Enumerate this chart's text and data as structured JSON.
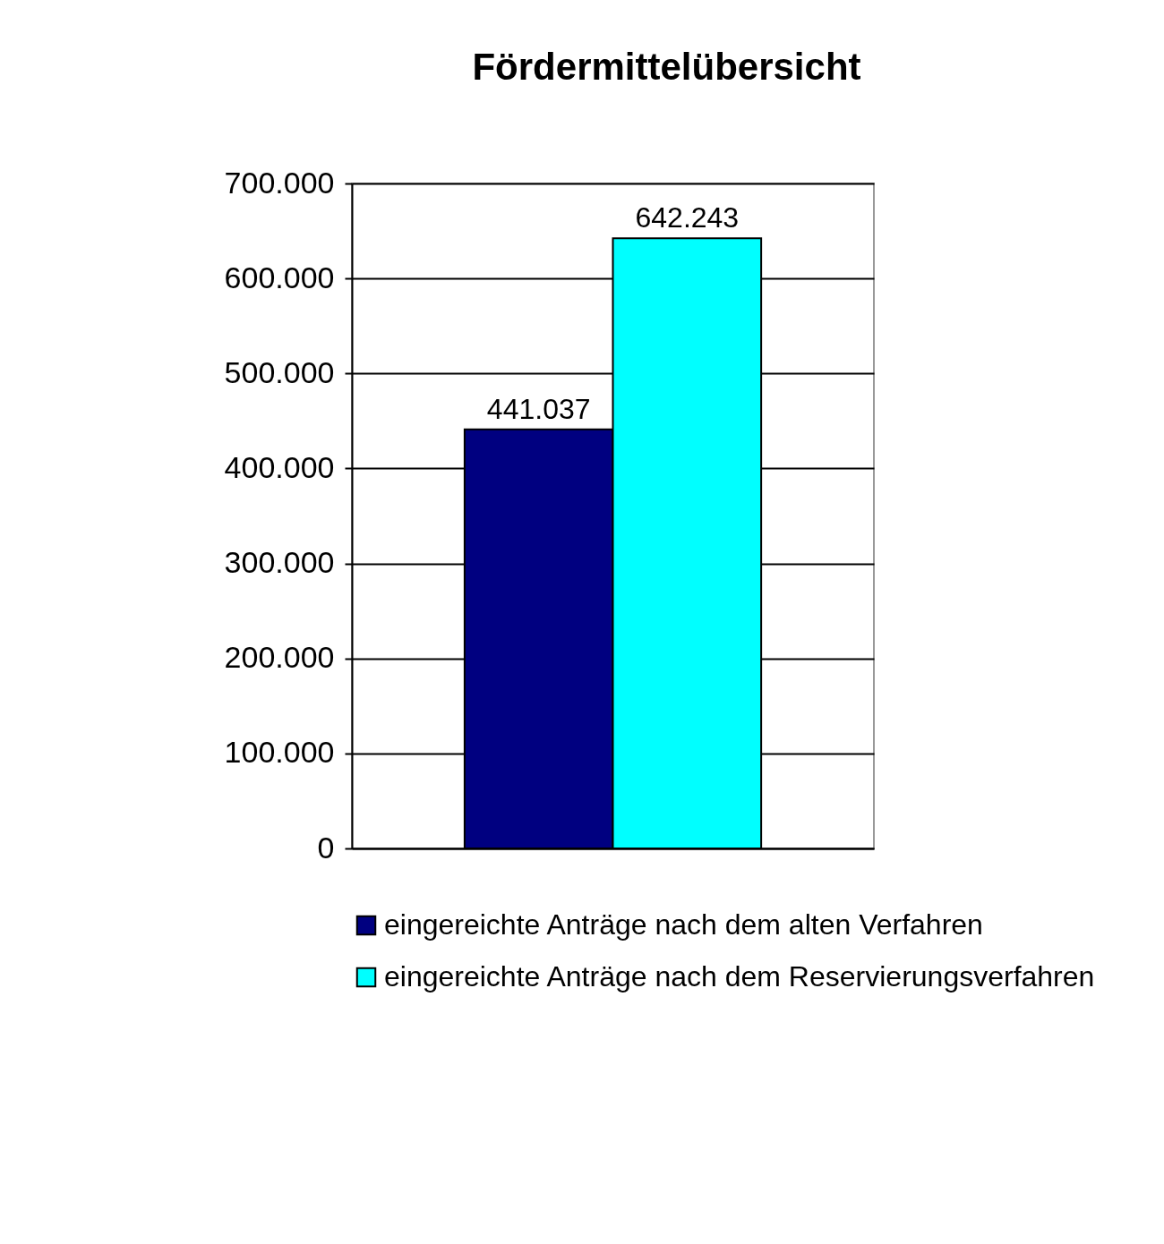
{
  "chart_data": {
    "type": "bar",
    "title": "Fördermittelübersicht",
    "categories": [
      null
    ],
    "series": [
      {
        "name": "eingereichte Anträge nach dem alten Verfahren",
        "color": "#000080",
        "values": [
          441037
        ],
        "value_labels": [
          "441.037"
        ]
      },
      {
        "name": "eingereichte Anträge nach dem Reservierungsverfahren",
        "color": "#00ffff",
        "values": [
          642243
        ],
        "value_labels": [
          "642.243"
        ]
      }
    ],
    "ylim": [
      0,
      700000
    ],
    "yticks": [
      {
        "value": 0,
        "label": "0"
      },
      {
        "value": 100000,
        "label": "100.000"
      },
      {
        "value": 200000,
        "label": "200.000"
      },
      {
        "value": 300000,
        "label": "300.000"
      },
      {
        "value": 400000,
        "label": "400.000"
      },
      {
        "value": 500000,
        "label": "500.000"
      },
      {
        "value": 600000,
        "label": "600.000"
      },
      {
        "value": 700000,
        "label": "700.000"
      }
    ],
    "grid": "y",
    "legend": "bottom",
    "tick_labels": "y"
  }
}
